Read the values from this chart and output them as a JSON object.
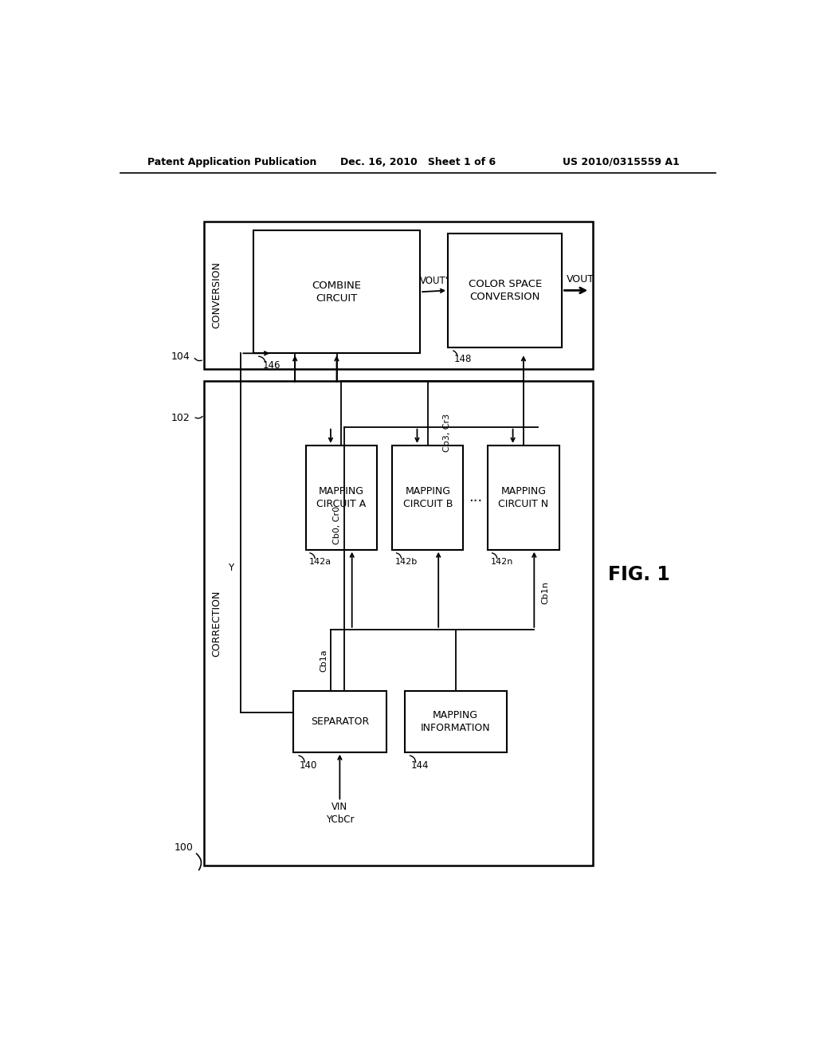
{
  "bg_color": "#ffffff",
  "header_left": "Patent Application Publication",
  "header_center": "Dec. 16, 2010   Sheet 1 of 6",
  "header_right": "US 2010/0315559 A1",
  "fig_label": "FIG. 1",
  "box_correction": "CORRECTION",
  "box_conversion": "CONVERSION",
  "box_combine": "COMBINE\nCIRCUIT",
  "box_csc": "COLOR SPACE\nCONVERSION",
  "box_separator": "SEPARATOR",
  "box_mapping_info": "MAPPING\nINFORMATION",
  "box_mapping_a": "MAPPING\nCIRCUIT A",
  "box_mapping_b": "MAPPING\nCIRCUIT B",
  "box_mapping_n": "MAPPING\nCIRCUIT N",
  "sig_vin": "VIN\nYCbCr",
  "sig_y": "Y",
  "sig_cb0cr0": "Cb0, Cr0",
  "sig_cb1a": "Cb1a",
  "sig_cb3cr3": "Cb3, Cr3",
  "sig_cb1n": "Cb1n",
  "sig_vout_prime": "VOUT'",
  "sig_vout": "VOUT",
  "dots": "...",
  "n100": "100",
  "n102": "102",
  "n104": "104",
  "n140": "140",
  "n142a": "142a",
  "n142b": "142b",
  "n142n": "142n",
  "n144": "144",
  "n146": "146",
  "n148": "148"
}
